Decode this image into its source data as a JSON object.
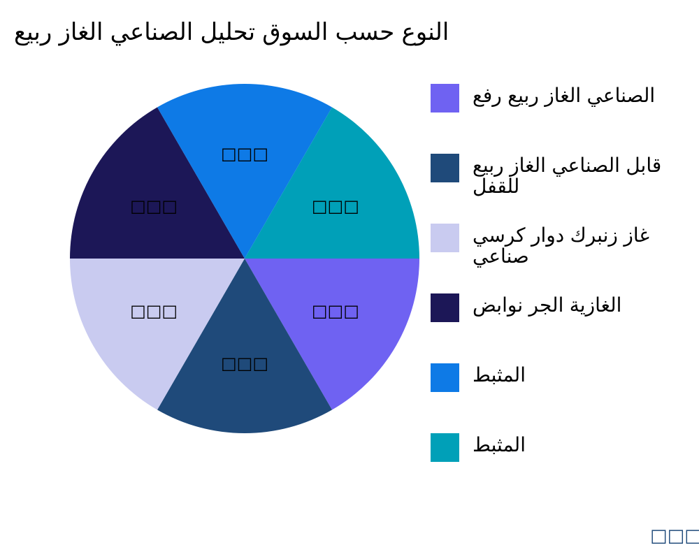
{
  "chart_data": {
    "type": "pie",
    "title": "ربيع الغاز الصناعي تحليل السوق حسب النوع",
    "slices": [
      {
        "name": "رفع ربيع الغاز الصناعي",
        "value": 1,
        "color": "#6f62f2",
        "label": "□□□"
      },
      {
        "name": "ربيع الغاز الصناعي قابل للقفل",
        "value": 1,
        "color": "#1f4a7a",
        "label": "□□□"
      },
      {
        "name": "كرسي دوار زنبرك غاز صناعي",
        "value": 1,
        "color": "#c9cbf0",
        "label": "□□□"
      },
      {
        "name": "نوابض الجر الغازية",
        "value": 1,
        "color": "#1c1757",
        "label": "□□□"
      },
      {
        "name": "المثبط",
        "value": 1,
        "color": "#0e7ae6",
        "label": "□□□"
      },
      {
        "name": "المثبط",
        "value": 1,
        "color": "#00a0b8",
        "label": "□□□"
      }
    ],
    "legend_position": "right"
  },
  "footer": "□□□"
}
